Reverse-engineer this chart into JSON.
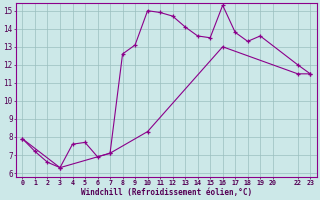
{
  "xlabel": "Windchill (Refroidissement éolien,°C)",
  "background_color": "#cce8e8",
  "grid_color": "#9bbfbf",
  "line_color": "#8b008b",
  "xlim_min": -0.5,
  "xlim_max": 23.5,
  "ylim_min": 5.8,
  "ylim_max": 15.4,
  "yticks": [
    6,
    7,
    8,
    9,
    10,
    11,
    12,
    13,
    14,
    15
  ],
  "xticks": [
    0,
    1,
    2,
    3,
    4,
    5,
    6,
    7,
    8,
    9,
    10,
    11,
    12,
    13,
    14,
    15,
    16,
    17,
    18,
    19,
    20,
    22,
    23
  ],
  "xtick_labels": [
    "0",
    "1",
    "2",
    "3",
    "4",
    "5",
    "6",
    "7",
    "8",
    "9",
    "10",
    "11",
    "12",
    "13",
    "14",
    "15",
    "16",
    "17",
    "18",
    "19",
    "20",
    "22",
    "23"
  ],
  "series1_x": [
    0,
    1,
    2,
    3,
    4,
    5,
    6,
    7,
    8,
    9,
    10,
    11,
    12,
    13,
    14,
    15,
    16,
    17,
    18,
    19,
    22,
    23
  ],
  "series1_y": [
    7.9,
    7.2,
    6.6,
    6.3,
    7.6,
    7.7,
    6.9,
    7.1,
    12.6,
    13.1,
    15.0,
    14.9,
    14.7,
    14.1,
    13.6,
    13.5,
    15.3,
    13.8,
    13.3,
    13.6,
    12.0,
    11.5
  ],
  "series2_x": [
    0,
    3,
    7,
    10,
    16,
    22,
    23
  ],
  "series2_y": [
    7.9,
    6.3,
    7.1,
    8.3,
    13.0,
    11.5,
    11.5
  ]
}
